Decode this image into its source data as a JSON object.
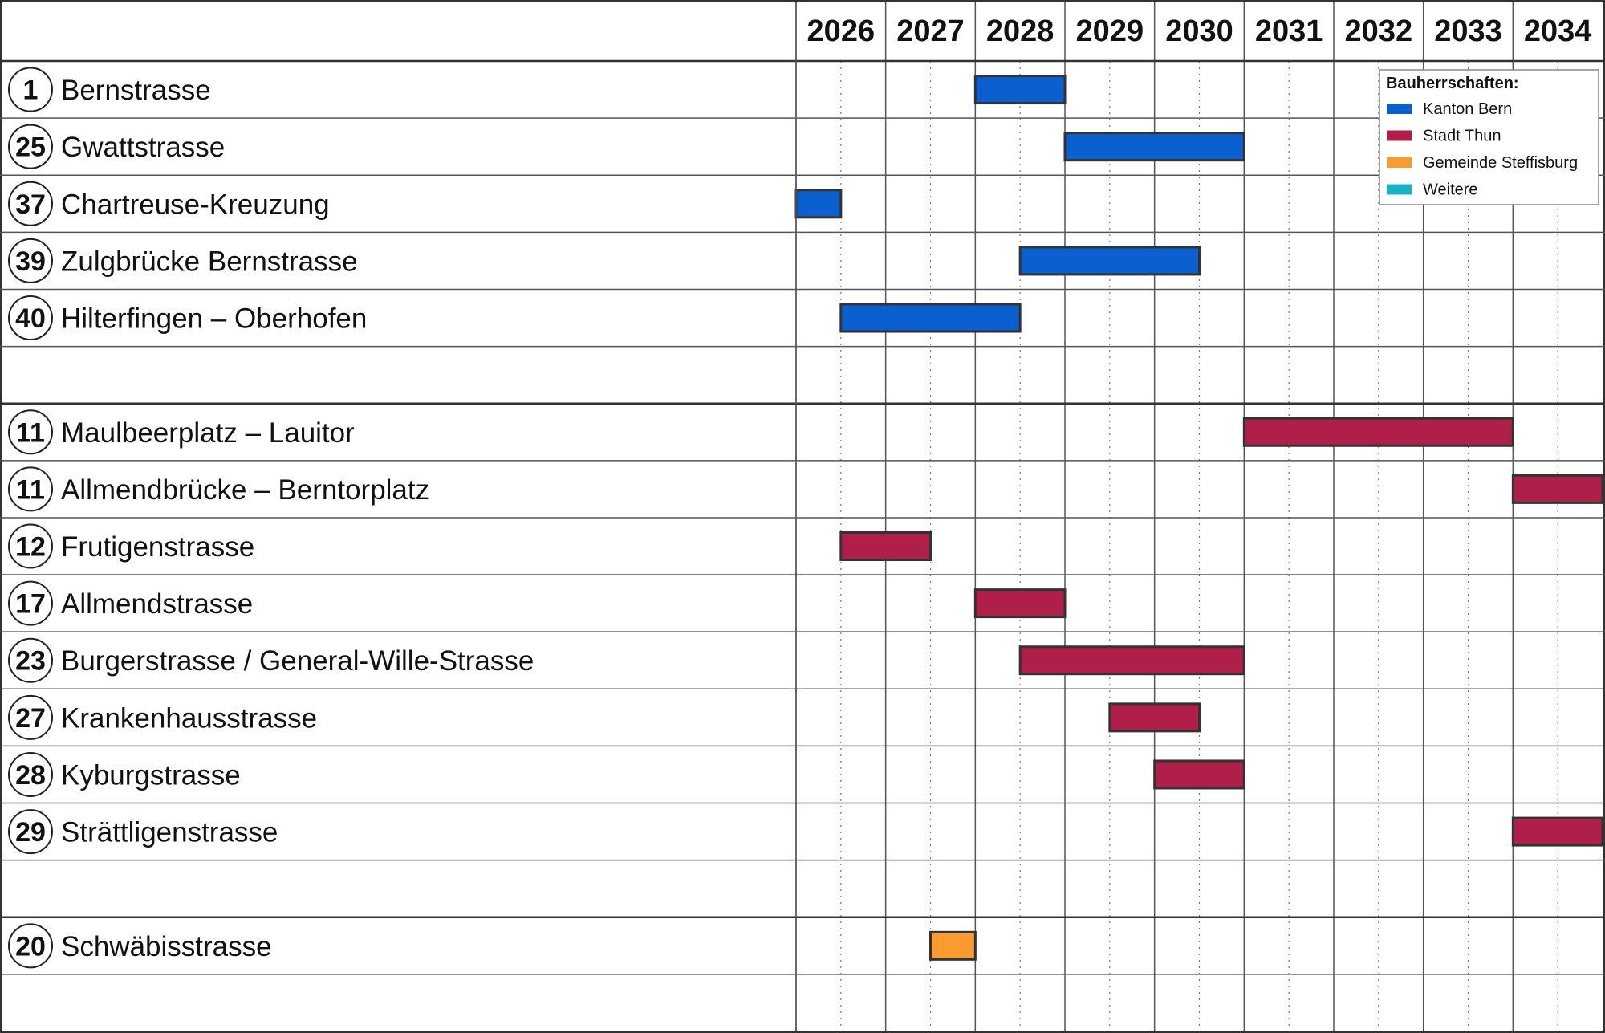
{
  "chart_data": {
    "type": "gantt",
    "legend_title": "Bauherrschaften:",
    "xlim": [
      2026,
      2035
    ],
    "xticks": [
      2026,
      2027,
      2028,
      2029,
      2030,
      2031,
      2032,
      2033,
      2034
    ],
    "series": [
      {
        "name": "Kanton Bern",
        "color": "#0b5fce",
        "tasks": [
          {
            "id": "1",
            "label": "Bernstrasse",
            "start": 2028,
            "end": 2029
          },
          {
            "id": "25",
            "label": "Gwattstrasse",
            "start": 2029,
            "end": 2031
          },
          {
            "id": "37",
            "label": "Chartreuse-Kreuzung",
            "start": 2026,
            "end": 2026.5
          },
          {
            "id": "39",
            "label": "Zulgbrücke Bernstrasse",
            "start": 2028.5,
            "end": 2030.5
          },
          {
            "id": "40",
            "label": "Hilterfingen – Oberhofen",
            "start": 2026.5,
            "end": 2028.5
          }
        ]
      },
      {
        "name": "Stadt Thun",
        "color": "#b01f4a",
        "tasks": [
          {
            "id": "11",
            "label": "Maulbeerplatz – Lauitor",
            "start": 2031,
            "end": 2034
          },
          {
            "id": "11",
            "label": "Allmendbrücke – Berntorplatz",
            "start": 2034,
            "end": 2035
          },
          {
            "id": "12",
            "label": "Frutigenstrasse",
            "start": 2026.5,
            "end": 2027.5
          },
          {
            "id": "17",
            "label": "Allmendstrasse",
            "start": 2028,
            "end": 2029
          },
          {
            "id": "23",
            "label": "Burgerstrasse / General-Wille-Strasse",
            "start": 2028.5,
            "end": 2031
          },
          {
            "id": "27",
            "label": "Krankenhausstrasse",
            "start": 2029.5,
            "end": 2030.5
          },
          {
            "id": "28",
            "label": "Kyburgstrasse",
            "start": 2030,
            "end": 2031
          },
          {
            "id": "29",
            "label": "Strättligenstrasse",
            "start": 2034,
            "end": 2035
          }
        ]
      },
      {
        "name": "Gemeinde Steffisburg",
        "color": "#f99b30",
        "tasks": [
          {
            "id": "20",
            "label": "Schwäbisstrasse",
            "start": 2027.5,
            "end": 2028
          }
        ]
      },
      {
        "name": "Weitere",
        "color": "#13b5c4",
        "tasks": []
      }
    ]
  }
}
